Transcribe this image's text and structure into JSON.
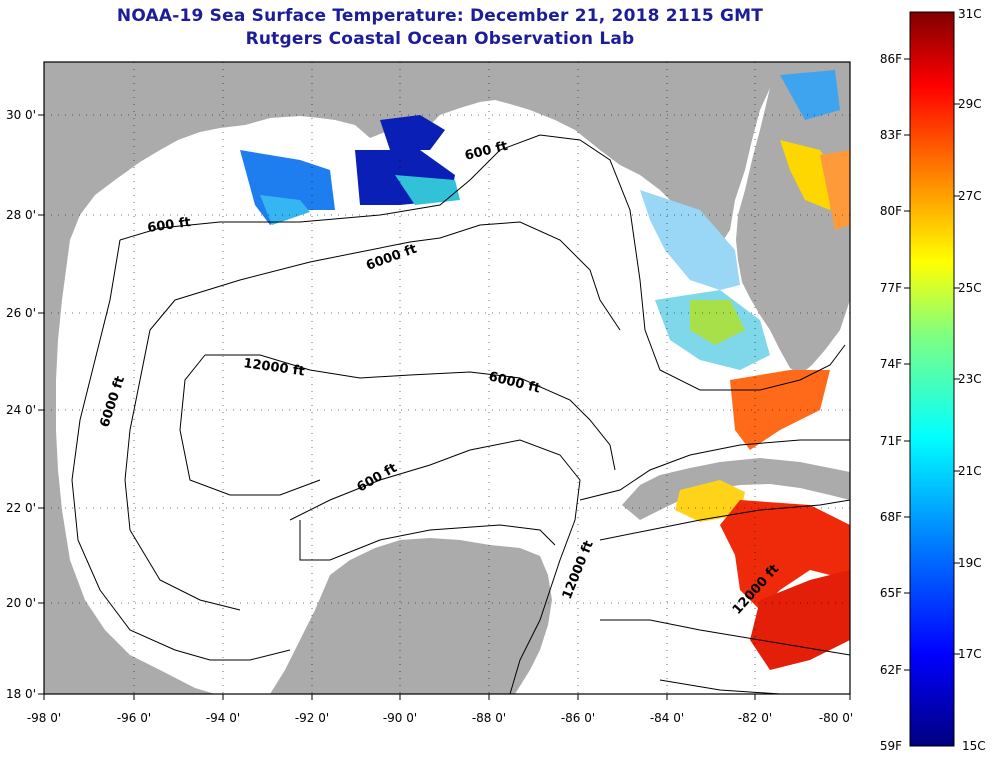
{
  "title": {
    "line1": "NOAA-19 Sea Surface Temperature:  December 21, 2018 2115 GMT",
    "line2": "Rutgers Coastal Ocean Observation Lab"
  },
  "map": {
    "lon_labels": [
      "-98 0'",
      "-96 0'",
      "-94 0'",
      "-92 0'",
      "-90 0'",
      "-88 0'",
      "-86 0'",
      "-84 0'",
      "-82 0'",
      "-80 0'"
    ],
    "lat_labels": [
      "30 0'",
      "28 0'",
      "26 0'",
      "24 0'",
      "22 0'",
      "20 0'",
      "18 0'"
    ],
    "contour_labels": [
      "600 ft",
      "600 ft",
      "6000 ft",
      "12000 ft",
      "6000 ft",
      "6000 ft",
      "600 ft",
      "12000 ft",
      "12000 ft"
    ],
    "colors": {
      "land": "#ababab",
      "ocean": "#ffffff",
      "frame": "#000000"
    }
  },
  "colorbar": {
    "f_labels": [
      "86F",
      "83F",
      "80F",
      "77F",
      "74F",
      "71F",
      "68F",
      "65F",
      "62F",
      "59F"
    ],
    "c_labels": [
      "31C",
      "29C",
      "27C",
      "25C",
      "23C",
      "21C",
      "19C",
      "17C",
      "15C"
    ],
    "min_c": 15,
    "max_c": 31,
    "colors": [
      "#00007f",
      "#0000ff",
      "#0080ff",
      "#00ffff",
      "#80ff80",
      "#ffff00",
      "#ff8000",
      "#ff0000",
      "#7f0000"
    ]
  }
}
